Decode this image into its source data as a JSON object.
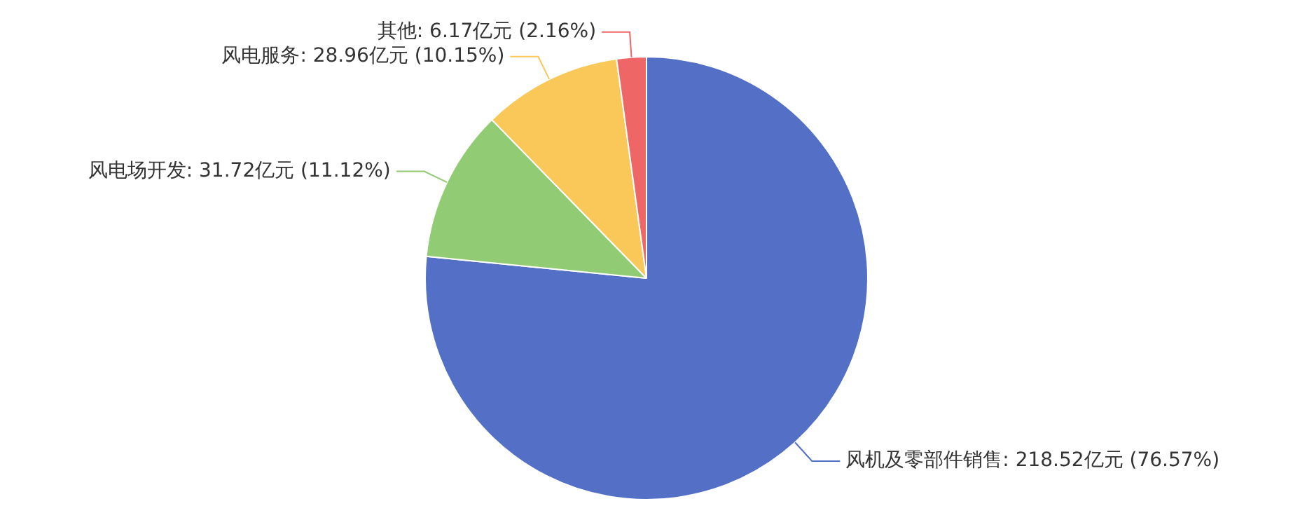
{
  "chart_data": {
    "type": "pie",
    "categories": [
      "风机及零部件销售",
      "风电场开发",
      "风电服务",
      "其他"
    ],
    "values": [
      218.52,
      31.72,
      28.96,
      6.17
    ],
    "colors": [
      "#5470c6",
      "#91cc75",
      "#fac858",
      "#ee6666"
    ],
    "value_labels": [
      "218.52亿元 (76.57%)",
      "31.72亿元 (11.12%)",
      "28.96亿元 (10.15%)",
      "6.17亿元 (2.16%)"
    ],
    "legend": false
  }
}
